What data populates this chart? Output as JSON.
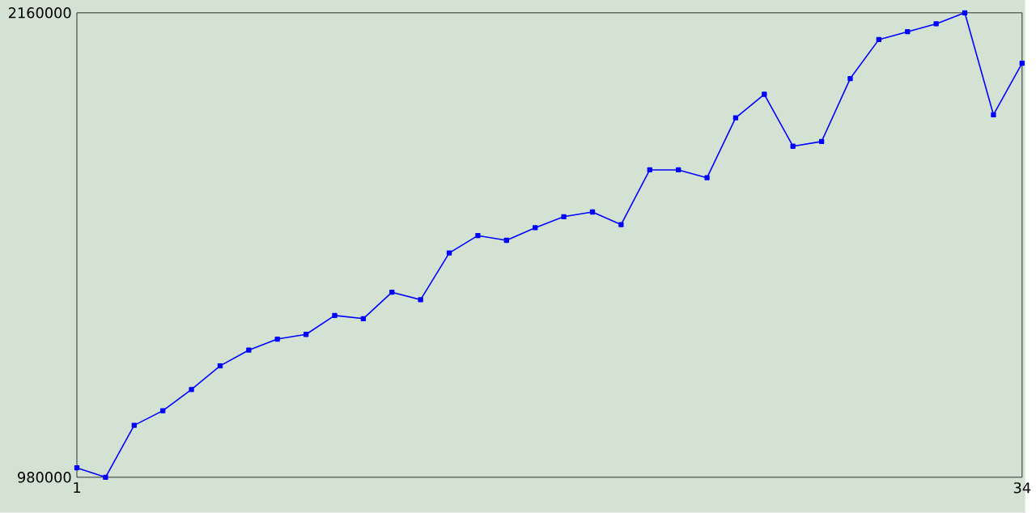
{
  "chart_data": {
    "type": "line",
    "x": [
      1,
      2,
      3,
      4,
      5,
      6,
      7,
      8,
      9,
      10,
      11,
      12,
      13,
      14,
      15,
      16,
      17,
      18,
      19,
      20,
      21,
      22,
      23,
      24,
      25,
      26,
      27,
      28,
      29,
      30,
      31,
      32,
      33,
      34
    ],
    "series": [
      {
        "color": "#0000ff",
        "values": [
          1004000,
          980000,
          1112000,
          1149000,
          1203000,
          1263000,
          1303000,
          1331000,
          1343000,
          1391000,
          1383000,
          1450000,
          1431000,
          1550000,
          1594000,
          1582000,
          1614000,
          1642000,
          1654000,
          1622000,
          1761000,
          1761000,
          1741000,
          1893000,
          1953000,
          1821000,
          1833000,
          1993000,
          2092000,
          2112000,
          2132000,
          2160000,
          1901000,
          2032000
        ]
      }
    ],
    "xlim": [
      1,
      34
    ],
    "ylim": [
      980000,
      2160000
    ],
    "xticks": [
      1,
      34
    ],
    "yticks": [
      980000,
      2160000
    ],
    "grid": false,
    "marker": "square",
    "line_style": "solid"
  }
}
